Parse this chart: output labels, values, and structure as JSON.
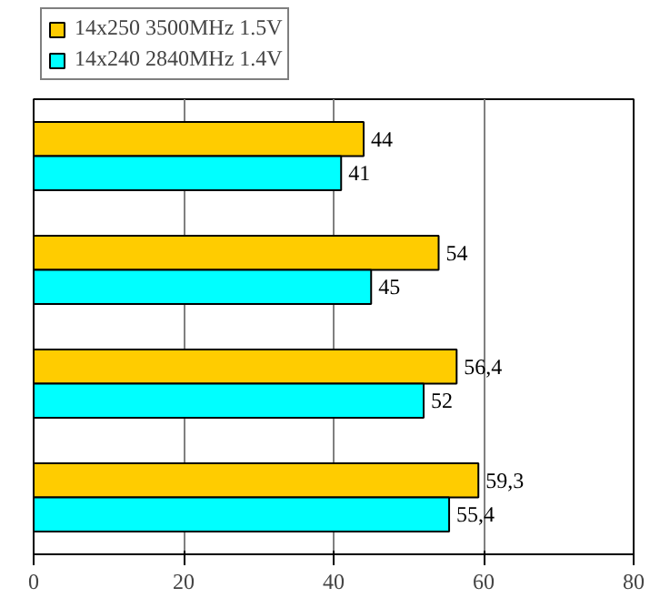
{
  "chart_data": {
    "type": "bar",
    "orientation": "horizontal",
    "categories": [
      null,
      null,
      null,
      null
    ],
    "series": [
      {
        "name": "14x250 3500MHz 1.5V",
        "color": "#ffcc00",
        "values": [
          44,
          54,
          56.4,
          59.3
        ],
        "value_labels": [
          "44",
          "54",
          "56,4",
          "59,3"
        ]
      },
      {
        "name": "14x240 2840MHz 1.4V",
        "color": "#00ffff",
        "values": [
          41,
          45,
          52,
          55.4
        ],
        "value_labels": [
          "41",
          "45",
          "52",
          "55,4"
        ]
      }
    ],
    "xlim": [
      0,
      80
    ],
    "xticks": [
      0,
      20,
      40,
      60,
      80
    ],
    "grid": "x",
    "legend": "top left"
  }
}
